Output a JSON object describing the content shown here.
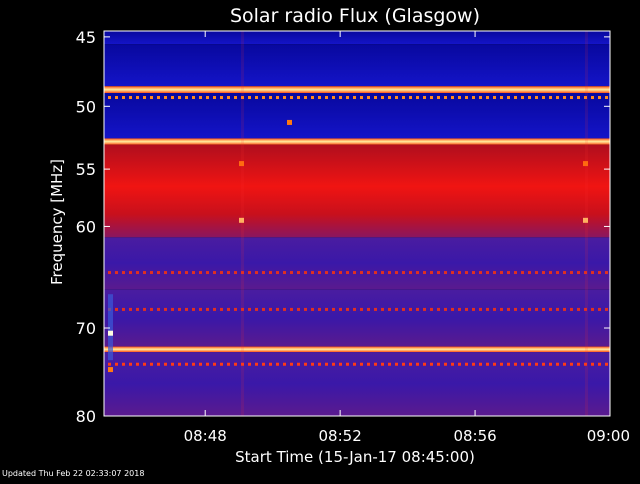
{
  "chart_data": {
    "type": "heatmap",
    "title": "Solar radio Flux (Glasgow)",
    "xlabel": "Start Time (15-Jan-17 08:45:00)",
    "ylabel": "Frequency [MHz]",
    "x_tick_labels": [
      "08:48",
      "08:52",
      "08:56",
      "09:00"
    ],
    "x_tick_values": [
      "08:48",
      "08:52",
      "08:56",
      "09:00"
    ],
    "x_range": [
      "08:45:00",
      "09:00:00"
    ],
    "y_tick_labels": [
      "45",
      "50",
      "55",
      "60",
      "70",
      "80"
    ],
    "y_tick_values": [
      45,
      50,
      55,
      60,
      70,
      80
    ],
    "y_range": [
      44.6,
      80
    ],
    "y_scale": "log",
    "colors": {
      "background": "#000000",
      "low": "#0a0ab4",
      "mid": "#5a1a9a",
      "high": "#e01010",
      "peak": "#ffe070"
    },
    "frequency_bands": [
      {
        "from": 44.6,
        "to": 45.5,
        "level": "low"
      },
      {
        "from": 45.5,
        "to": 48.5,
        "level": "low"
      },
      {
        "from": 48.5,
        "to": 49.0,
        "level": "peak"
      },
      {
        "from": 49.0,
        "to": 52.5,
        "level": "low"
      },
      {
        "from": 52.5,
        "to": 53.0,
        "level": "peak"
      },
      {
        "from": 53.0,
        "to": 61.0,
        "level": "high"
      },
      {
        "from": 61.0,
        "to": 66.0,
        "level": "mid"
      },
      {
        "from": 66.0,
        "to": 72.0,
        "level": "mid"
      },
      {
        "from": 72.0,
        "to": 72.6,
        "level": "peak"
      },
      {
        "from": 72.6,
        "to": 80.0,
        "level": "mid"
      }
    ]
  },
  "footer": {
    "updated": "Updated Thu Feb 22 02:33:07 2018"
  }
}
